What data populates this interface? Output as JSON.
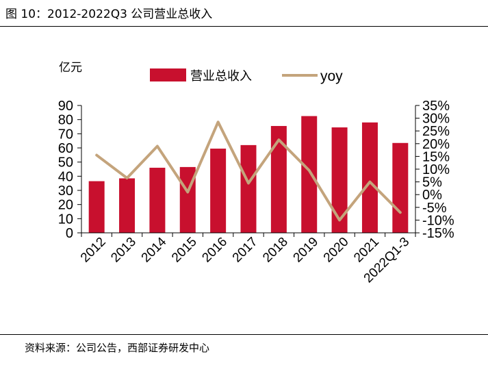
{
  "figure": {
    "title": "图 10：2012-2022Q3 公司营业总收入",
    "source": "资料来源：公司公告，西部证券研发中心"
  },
  "colors": {
    "bar": "#c8102e",
    "line": "#c4a47c",
    "axis": "#000000"
  },
  "chart_data": {
    "type": "bar",
    "title": "",
    "ylabel": "亿元",
    "categories": [
      "2012",
      "2013",
      "2014",
      "2015",
      "2016",
      "2017",
      "2018",
      "2019",
      "2020",
      "2021",
      "2022Q1-3"
    ],
    "series": [
      {
        "name": "营业总收入",
        "type": "bar",
        "axis": "left",
        "values": [
          36.5,
          38.5,
          46,
          46.5,
          59.5,
          62,
          75.5,
          82.5,
          74.5,
          78,
          63.5
        ]
      },
      {
        "name": "yoy",
        "type": "line",
        "axis": "right",
        "values": [
          15.5,
          6.5,
          19,
          1,
          28.5,
          4.5,
          21.5,
          9.5,
          -10,
          5,
          -7
        ]
      }
    ],
    "ylim": [
      0,
      90
    ],
    "yticks": [
      "0",
      "10",
      "20",
      "30",
      "40",
      "50",
      "60",
      "70",
      "80",
      "90"
    ],
    "y2lim": [
      -15,
      35
    ],
    "y2ticks": [
      "-15%",
      "-10%",
      "-5%",
      "0%",
      "5%",
      "10%",
      "15%",
      "20%",
      "25%",
      "30%",
      "35%"
    ],
    "legend": "top",
    "grid": false
  }
}
